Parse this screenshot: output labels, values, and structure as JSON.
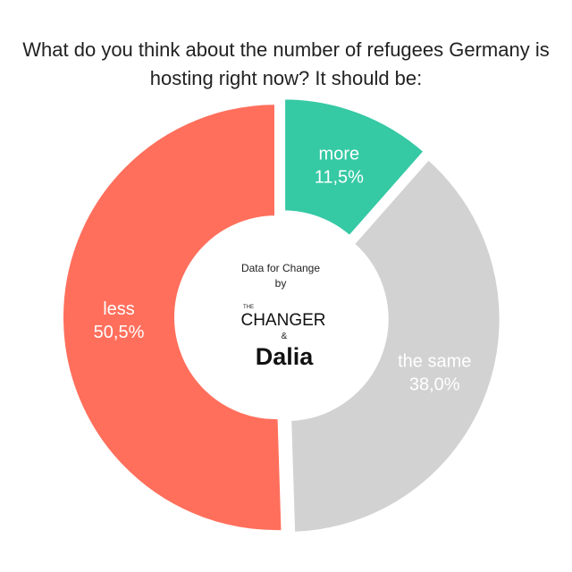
{
  "title": {
    "line1": "What do you think about the number of refugees Germany is",
    "line2": "hosting right now? It should be:"
  },
  "center": {
    "line1": "Data for Change",
    "line2": "by",
    "changer_small": "THE",
    "changer": "CHANGER",
    "amp": "&",
    "dalia": "Dalia"
  },
  "colors": {
    "more": "#35c9a4",
    "same": "#d3d2d2",
    "less": "#ff6f5c",
    "label_light": "#ffffff"
  },
  "chart_data": {
    "type": "pie",
    "donut": true,
    "title": "What do you think about the number of refugees Germany is hosting right now? It should be:",
    "slices": [
      {
        "name": "more",
        "value": 11.5,
        "value_label": "11,5%",
        "color": "#35c9a4"
      },
      {
        "name": "the same",
        "value": 38.0,
        "value_label": "38,0%",
        "color": "#d3d2d2"
      },
      {
        "name": "less",
        "value": 50.5,
        "value_label": "50,5%",
        "color": "#ff6f5c"
      }
    ]
  }
}
